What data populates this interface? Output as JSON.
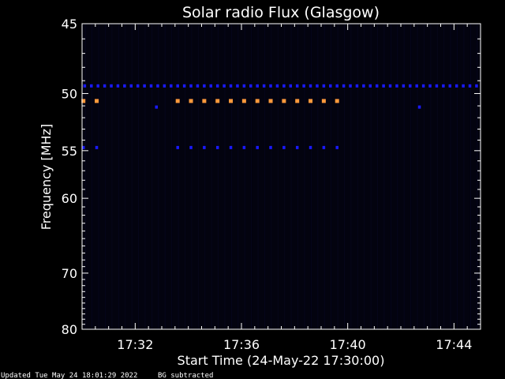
{
  "chart_data": {
    "type": "heatmap",
    "title": "Solar radio Flux (Glasgow)",
    "xlabel": "Start Time (24-May-22 17:30:00)",
    "ylabel": "Frequency [MHz]",
    "x_range_minutes_after_1730": [
      0,
      15
    ],
    "x_ticks": [
      {
        "minute": 2,
        "label": "17:32"
      },
      {
        "minute": 6,
        "label": "17:36"
      },
      {
        "minute": 10,
        "label": "17:40"
      },
      {
        "minute": 14,
        "label": "17:44"
      }
    ],
    "y_range_mhz": [
      45,
      80
    ],
    "y_scale": "reciprocal",
    "y_ticks": [
      {
        "mhz": 45,
        "label": "45"
      },
      {
        "mhz": 50,
        "label": "50"
      },
      {
        "mhz": 55,
        "label": "55"
      },
      {
        "mhz": 60,
        "label": "60"
      },
      {
        "mhz": 70,
        "label": "70"
      },
      {
        "mhz": 80,
        "label": "80"
      }
    ],
    "background_color": "#000000",
    "plot_background_color": "#03030f",
    "colors": {
      "low": "#0a0a2a",
      "medium": "#1a1aff",
      "high": "#ff9a3c"
    },
    "emission_bands": [
      {
        "mhz": 49.4,
        "from_min": 0.1,
        "to_min": 15.0,
        "level": "medium",
        "dash_step_min": 0.25
      },
      {
        "mhz": 50.6,
        "from_min": 0.05,
        "to_min": 0.65,
        "level": "high",
        "dash_step_min": 0.5
      },
      {
        "mhz": 50.6,
        "from_min": 3.6,
        "to_min": 9.7,
        "level": "high",
        "dash_step_min": 0.5
      },
      {
        "mhz": 54.7,
        "from_min": 0.05,
        "to_min": 0.65,
        "level": "medium",
        "dash_step_min": 0.5
      },
      {
        "mhz": 54.7,
        "from_min": 3.6,
        "to_min": 9.7,
        "level": "medium",
        "dash_step_min": 0.5
      },
      {
        "mhz": 51.1,
        "from_min": 2.8,
        "to_min": 2.9,
        "level": "medium",
        "dash_step_min": 0.5
      },
      {
        "mhz": 51.1,
        "from_min": 12.7,
        "to_min": 12.8,
        "level": "medium",
        "dash_step_min": 0.5
      }
    ]
  },
  "footer": {
    "updated": "Updated Tue May 24 18:01:29 2022",
    "note": "BG subtracted"
  }
}
